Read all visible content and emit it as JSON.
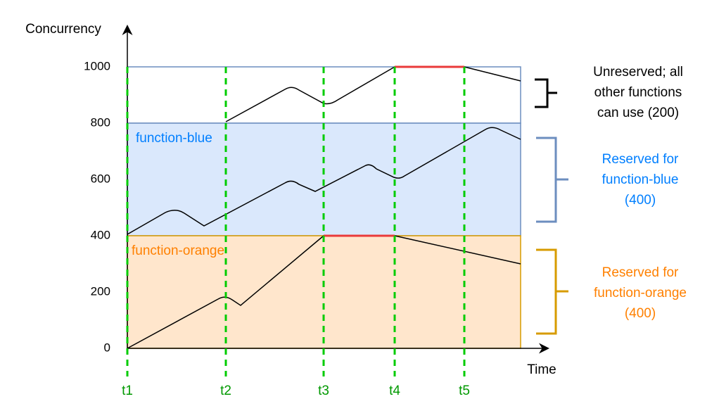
{
  "axis": {
    "y_label": "Concurrency",
    "x_label": "Time",
    "ylim": [
      0,
      1000
    ],
    "yticks": [
      0,
      200,
      400,
      600,
      800,
      1000
    ]
  },
  "times": [
    "t1",
    "t2",
    "t3",
    "t4",
    "t5"
  ],
  "regions": {
    "blue": "function-blue",
    "orange": "function-orange"
  },
  "annotations": {
    "unreserved": [
      "Unreserved; all",
      "other functions",
      "can use (200)"
    ],
    "blue": [
      "Reserved for",
      "function-blue",
      "(400)"
    ],
    "orange": [
      "Reserved for",
      "function-orange",
      "(400)"
    ]
  }
}
